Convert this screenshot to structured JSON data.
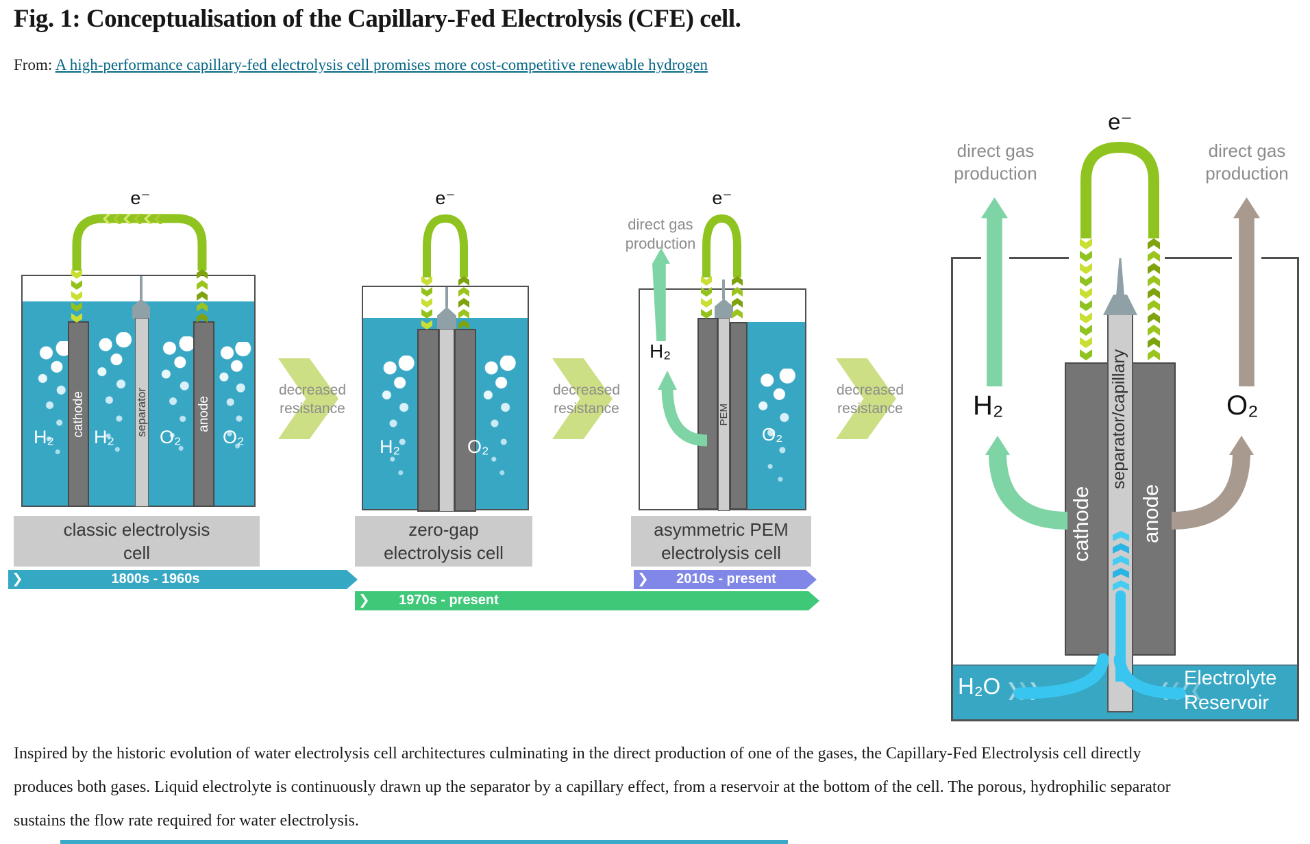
{
  "header": {
    "figure_title": "Fig. 1: Conceptualisation of the Capillary-Fed Electrolysis (CFE) cell.",
    "from_label": "From:",
    "source_link_text": "A high-performance capillary-fed electrolysis cell promises more cost-competitive renewable hydrogen"
  },
  "diagram": {
    "cells": [
      {
        "electron": "e⁻",
        "h2_outer": "H₂",
        "h2_inner": "H₂",
        "o2_inner": "O₂",
        "o2_outer": "O₂",
        "cathode": "cathode",
        "separator": "separator",
        "anode": "anode",
        "caption_line1": "classic electrolysis",
        "caption_line2": "cell"
      },
      {
        "electron": "e⁻",
        "h2": "H₂",
        "o2": "O₂",
        "caption_line1": "zero-gap",
        "caption_line2": "electrolysis cell"
      },
      {
        "electron": "e⁻",
        "annotation_line1": "direct gas",
        "annotation_line2": "production",
        "h2": "H₂",
        "o2": "O₂",
        "membrane": "PEM",
        "caption_line1": "asymmetric PEM",
        "caption_line2": "electrolysis cell"
      }
    ],
    "transition": {
      "line1": "decreased",
      "line2": "resistance"
    },
    "timeline": [
      {
        "label": "1800s - 1960s",
        "color": "#35a8c4"
      },
      {
        "label": "1970s - present",
        "color": "#3ec878"
      },
      {
        "label": "2010s - present",
        "color": "#8187e6"
      }
    ],
    "cfe": {
      "electron": "e⁻",
      "left_annotation_line1": "direct gas",
      "left_annotation_line2": "production",
      "right_annotation_line1": "direct gas",
      "right_annotation_line2": "production",
      "h2": "H₂",
      "o2": "O₂",
      "cathode": "cathode",
      "separator": "separator/capillary",
      "anode": "anode",
      "h2o": "H₂O",
      "reservoir_line1": "Electrolyte",
      "reservoir_line2": "Reservoir"
    }
  },
  "caption": {
    "text": "Inspired by the historic evolution of water electrolysis cell architectures culminating in the direct production of one of the gases, the Capillary-Fed Electrolysis cell directly produces both gases. Liquid electrolyte is continuously drawn up the separator by a capillary effect, from a reservoir at the bottom of the cell. The porous, hydrophilic separator sustains the flow rate required for water electrolysis."
  },
  "colors": {
    "liquid_teal": "#37a7c4",
    "wire_green": "#8fc31f",
    "wire_green_light": "#c9df33",
    "wire_green_dark": "#7ea30e",
    "mint_gas": "#7fd4a5",
    "taupe_gas": "#a89a8e",
    "transition_arrow": "#cddf85",
    "annotation_gray": "#8c8c8c",
    "timeline_teal": "#35a8c4",
    "timeline_green": "#3ec878",
    "timeline_purple": "#8187e6",
    "electrode_gray": "#757575",
    "separator_gray": "#cdcdcd",
    "capillary_cyan": "#38c6f0",
    "link_teal": "#076785",
    "label_box_gray": "#cbcbcb"
  }
}
